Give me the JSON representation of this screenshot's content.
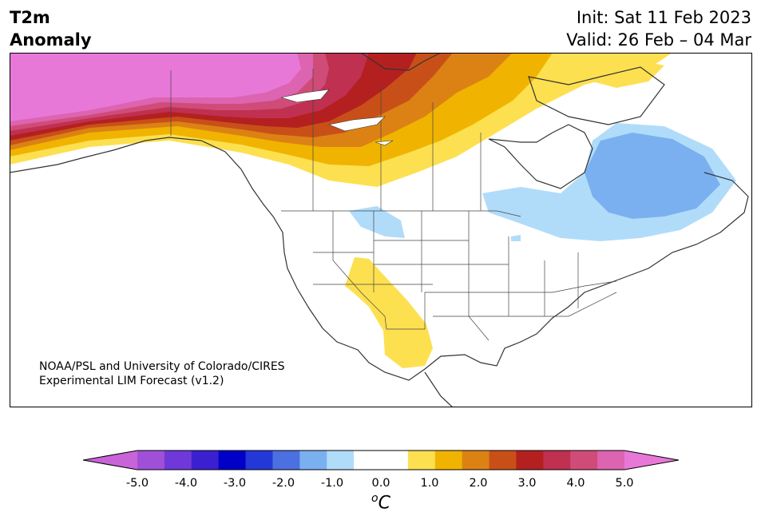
{
  "header": {
    "variable": "T2m",
    "quantity": "Anomaly",
    "init": "Init: Sat 11 Feb 2023",
    "valid": "Valid: 26 Feb – 04 Mar"
  },
  "map": {
    "region": "North America",
    "credit_line1": "NOAA/PSL and University of Colorado/CIRES",
    "credit_line2": "Experimental LIM Forecast (v1.2)"
  },
  "colorbar": {
    "ticks": [
      "-5.0",
      "-4.0",
      "-3.0",
      "-2.0",
      "-1.0",
      "0.0",
      "1.0",
      "2.0",
      "3.0",
      "4.0",
      "5.0"
    ],
    "unit": "C",
    "unit_sup": "o",
    "colors": [
      "#c864d8",
      "#a050d8",
      "#7038d8",
      "#3a20d0",
      "#0000c8",
      "#2438d8",
      "#4c70e0",
      "#7ab0f0",
      "#b0dcfa",
      "#ffffff",
      "#ffffff",
      "#fde050",
      "#f0b400",
      "#dc8214",
      "#c85018",
      "#b42020",
      "#c03050",
      "#d04c78",
      "#dc64b0",
      "#e878d8"
    ]
  }
}
